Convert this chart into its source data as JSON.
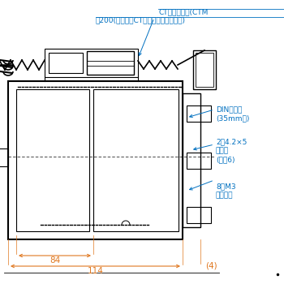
{
  "bg_color": "#ffffff",
  "line_color": "#000000",
  "annotation_color": "#0070c0",
  "dim_color": "#e07820",
  "annotations": {
    "ct_protector": "CTプロテクタ(CTM",
    "about200": "約200(本体側とCTプロテクタ側の合計)",
    "din_rail": "DINレール\n(35mm幅)",
    "mounting_hole": "2－4.2×5\n取付穴\n(深さ6)",
    "terminal_screw": "8－M3\n端子ねじ",
    "dim_84": "84",
    "dim_114": "114",
    "dim_4": "(4)"
  }
}
